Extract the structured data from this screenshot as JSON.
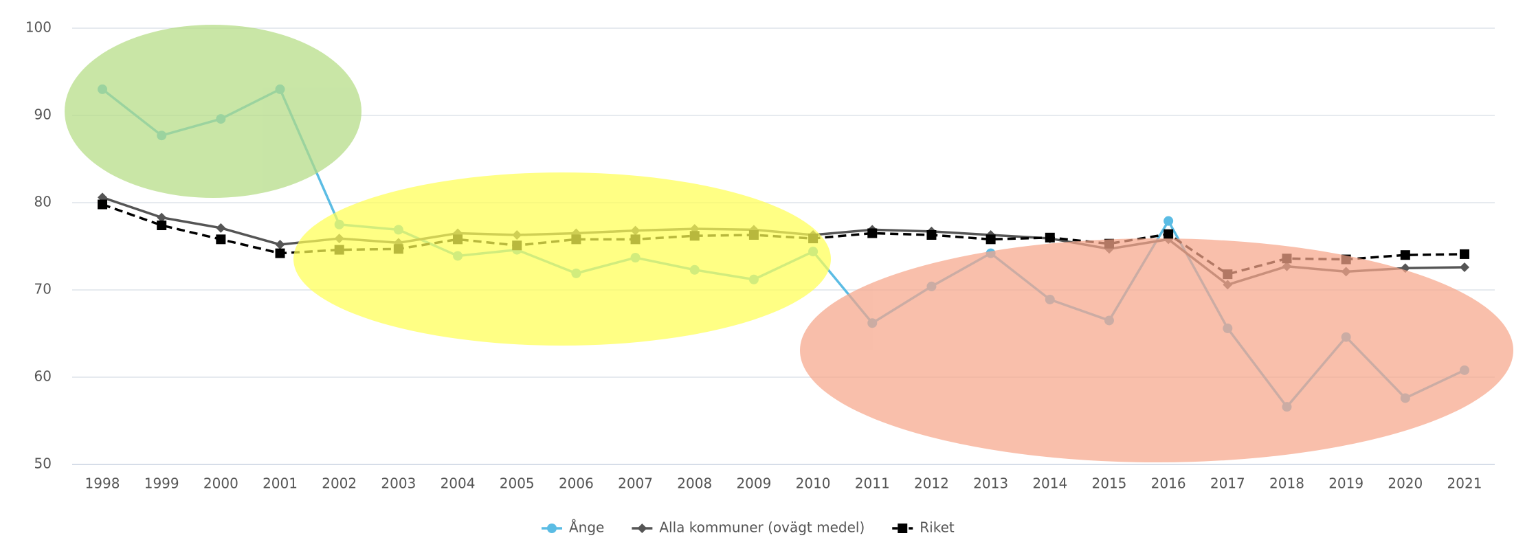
{
  "chart_data": {
    "type": "line",
    "categories": [
      "1998",
      "1999",
      "2000",
      "2001",
      "2002",
      "2003",
      "2004",
      "2005",
      "2006",
      "2007",
      "2008",
      "2009",
      "2010",
      "2011",
      "2012",
      "2013",
      "2014",
      "2015",
      "2016",
      "2017",
      "2018",
      "2019",
      "2020",
      "2021"
    ],
    "series": [
      {
        "name": "Ånge",
        "color": "#5bbce4",
        "marker": "circle",
        "dashed": false,
        "values": [
          93.0,
          87.7,
          89.6,
          93.0,
          77.5,
          76.9,
          73.9,
          74.6,
          71.9,
          73.7,
          72.3,
          71.2,
          74.4,
          66.2,
          70.4,
          74.2,
          68.9,
          66.5,
          77.9,
          65.6,
          56.6,
          64.6,
          57.6,
          60.8
        ]
      },
      {
        "name": "Alla kommuner (ovägt medel)",
        "color": "#555555",
        "marker": "diamond",
        "dashed": false,
        "values": [
          80.6,
          78.3,
          77.1,
          75.2,
          75.9,
          75.4,
          76.5,
          76.3,
          76.5,
          76.8,
          77.0,
          76.9,
          76.3,
          76.9,
          76.7,
          76.3,
          75.9,
          74.7,
          75.8,
          70.6,
          72.7,
          72.1,
          72.5,
          72.6
        ]
      },
      {
        "name": "Riket",
        "color": "#000000",
        "marker": "square",
        "dashed": true,
        "values": [
          79.8,
          77.4,
          75.8,
          74.2,
          74.6,
          74.7,
          75.8,
          75.1,
          75.8,
          75.8,
          76.2,
          76.3,
          75.9,
          76.5,
          76.3,
          75.8,
          76.0,
          75.3,
          76.4,
          71.8,
          73.6,
          73.5,
          74.0,
          74.1
        ]
      }
    ],
    "ylim": [
      50,
      100
    ],
    "yticks": [
      50,
      60,
      70,
      80,
      90,
      100
    ],
    "grid": true,
    "legend": "bottom"
  }
}
